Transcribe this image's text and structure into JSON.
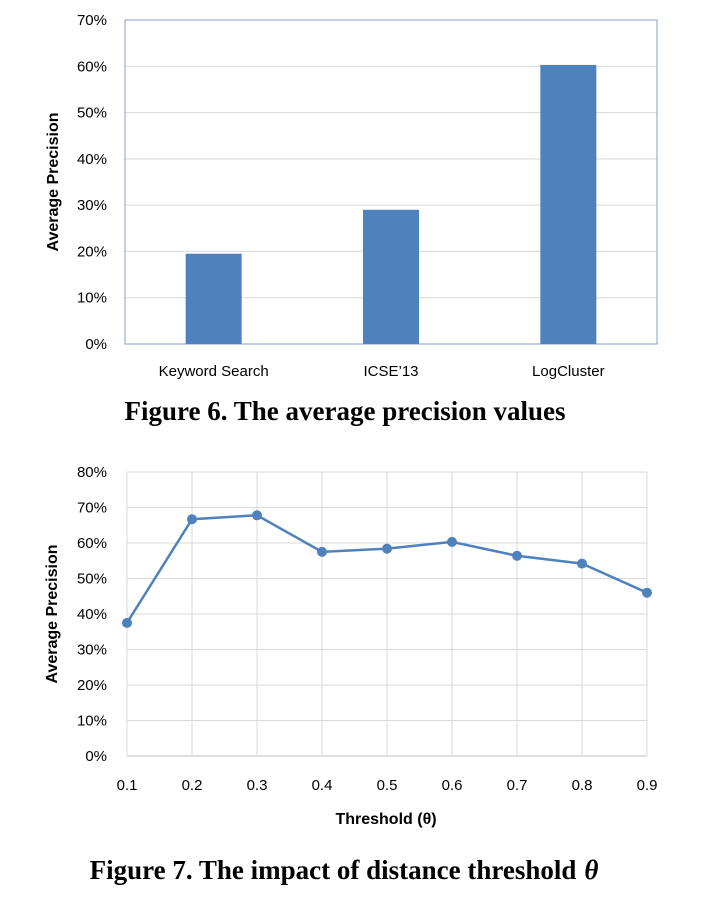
{
  "chart_data": [
    {
      "type": "bar",
      "categories": [
        "Keyword Search",
        "ICSE’13",
        "LogCluster"
      ],
      "values": [
        19.5,
        29,
        60.3
      ],
      "ylabel": "Average Precision",
      "xlabel": "",
      "ylim": [
        0,
        70
      ],
      "yticks": [
        0,
        10,
        20,
        30,
        40,
        50,
        60,
        70
      ],
      "ytick_labels": [
        "0%",
        "10%",
        "20%",
        "30%",
        "40%",
        "50%",
        "60%",
        "70%"
      ],
      "grid": true,
      "color": "#4f81bd",
      "caption": "Figure 6. The average precision values"
    },
    {
      "type": "line",
      "x": [
        0.1,
        0.2,
        0.3,
        0.4,
        0.5,
        0.6,
        0.7,
        0.8,
        0.9
      ],
      "xtick_labels": [
        "0.1",
        "0.2",
        "0.3",
        "0.4",
        "0.5",
        "0.6",
        "0.7",
        "0.8",
        "0.9"
      ],
      "values": [
        37.5,
        66.7,
        67.8,
        57.5,
        58.4,
        60.3,
        56.4,
        54.2,
        46
      ],
      "ylabel": "Average Precision",
      "xlabel": "Threshold (θ)",
      "ylim": [
        0,
        80
      ],
      "yticks": [
        0,
        10,
        20,
        30,
        40,
        50,
        60,
        70,
        80
      ],
      "ytick_labels": [
        "0%",
        "10%",
        "20%",
        "30%",
        "40%",
        "50%",
        "60%",
        "70%",
        "80%"
      ],
      "grid": true,
      "color": "#4f81bd",
      "caption": "Figure 7. The impact of distance threshold",
      "caption_symbol": "θ"
    }
  ]
}
